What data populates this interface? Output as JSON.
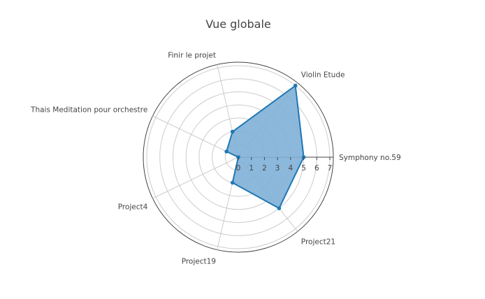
{
  "chart_data": {
    "type": "radar",
    "title": "Vue globale",
    "categories": [
      "Symphony no.59",
      "Violin Etude",
      "Finir le projet",
      "Thais Meditation pour orchestre",
      "Project4",
      "Project19",
      "Project21"
    ],
    "values": [
      5,
      7,
      2,
      1,
      0,
      2,
      5
    ],
    "rlim": [
      0,
      7
    ],
    "r_ticks": [
      "0",
      "1",
      "2",
      "3",
      "4",
      "5",
      "6",
      "7"
    ],
    "grid": true,
    "colors": {
      "series": "#1f77b4",
      "fill": "#7fb0d7",
      "grid": "#cccccc",
      "text": "#444444",
      "outline": "#444444"
    }
  }
}
